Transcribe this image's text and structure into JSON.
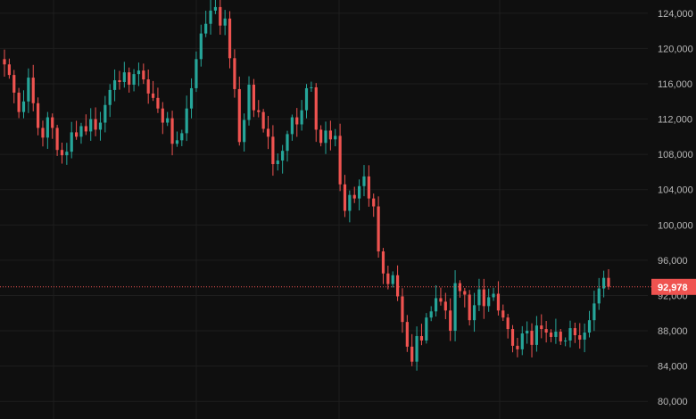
{
  "chart_data": {
    "type": "candlestick",
    "title": "",
    "xlabel": "",
    "ylabel": "",
    "ylim": [
      78000,
      125500
    ],
    "y_axis_position": "right",
    "grid": true,
    "y_ticks": [
      80000,
      84000,
      88000,
      92000,
      96000,
      100000,
      104000,
      108000,
      112000,
      116000,
      120000,
      124000
    ],
    "y_tick_labels": [
      "80,000",
      "84,000",
      "88,000",
      "92,000",
      "96,000",
      "100,000",
      "104,000",
      "108,000",
      "112,000",
      "116,000",
      "120,000",
      "124,000"
    ],
    "current_price": 92978,
    "current_price_label": "92,978",
    "colors": {
      "up": "#26a69a",
      "down": "#ef5350",
      "background": "#0f0f0f",
      "grid": "#1e1e1e",
      "price_line": "#ef5350"
    },
    "closes": [
      118200,
      117000,
      115000,
      112800,
      114000,
      116700,
      113800,
      111000,
      109900,
      112200,
      111000,
      108500,
      107900,
      108300,
      110500,
      110000,
      111200,
      110600,
      112000,
      110800,
      111600,
      113600,
      115300,
      116400,
      116200,
      117300,
      115900,
      117100,
      117500,
      116500,
      114900,
      114400,
      113200,
      111600,
      112100,
      109200,
      109600,
      110400,
      113200,
      115500,
      118800,
      121700,
      122800,
      124300,
      124700,
      122600,
      123400,
      118900,
      115400,
      109400,
      111900,
      115900,
      113000,
      112800,
      110900,
      110000,
      106900,
      107300,
      108400,
      110300,
      112200,
      111400,
      113000,
      115500,
      115600,
      110800,
      109300,
      110700,
      109700,
      110100,
      104600,
      101600,
      103400,
      103000,
      104400,
      105500,
      103000,
      102100,
      97000,
      94500,
      93300,
      94300,
      91900,
      89000,
      86200,
      84500,
      87400,
      86900,
      89500,
      90200,
      91700,
      91300,
      90300,
      88000,
      93400,
      92500,
      92100,
      89200,
      90900,
      92700,
      90800,
      91800,
      92200,
      90300,
      89500,
      88200,
      86300,
      85900,
      87700,
      88000,
      86400,
      88600,
      88200,
      87800,
      87300,
      87900,
      86800,
      86900,
      88300,
      87500,
      87000,
      87800,
      89200,
      91100,
      92800,
      94000,
      93000
    ]
  }
}
